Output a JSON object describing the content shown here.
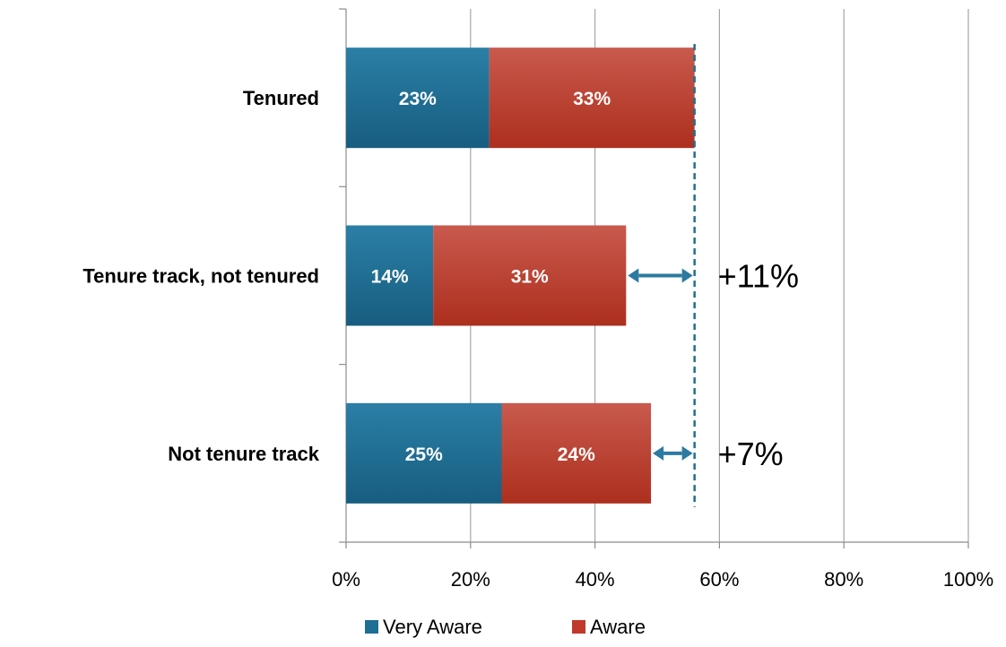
{
  "chart_data": {
    "type": "bar",
    "orientation": "horizontal",
    "stacked": true,
    "categories": [
      "Tenured",
      "Tenure track, not tenured",
      "Not tenure track"
    ],
    "series": [
      {
        "name": "Very Aware",
        "values": [
          23,
          14,
          25
        ],
        "labels": [
          "23%",
          "14%",
          "25%"
        ],
        "color": "#1f6f94"
      },
      {
        "name": "Aware",
        "values": [
          33,
          31,
          24
        ],
        "labels": [
          "33%",
          "31%",
          "24%"
        ],
        "color": "#c0392b"
      }
    ],
    "xlim": [
      0,
      100
    ],
    "x_ticks": [
      0,
      20,
      40,
      60,
      80,
      100
    ],
    "x_tick_labels": [
      "0%",
      "20%",
      "40%",
      "60%",
      "80%",
      "100%"
    ],
    "grid": {
      "vertical": true,
      "horizontal": false
    },
    "reference_line": {
      "value": 56,
      "style": "dashed",
      "color": "#1f6f94"
    },
    "annotations": [
      {
        "category": "Tenure track, not tenured",
        "from": 45,
        "to": 56,
        "label": "+11%",
        "color": "#2c7aa0"
      },
      {
        "category": "Not tenure track",
        "from": 49,
        "to": 56,
        "label": "+7%",
        "color": "#2c7aa0"
      }
    ],
    "legend": {
      "position": "bottom",
      "entries": [
        "Very Aware",
        "Aware"
      ]
    }
  }
}
